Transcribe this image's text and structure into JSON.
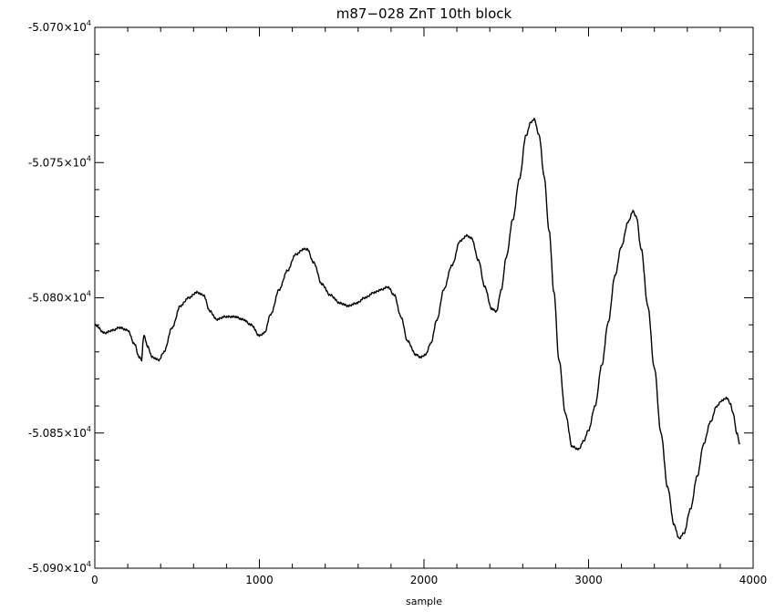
{
  "chart_data": {
    "type": "line",
    "title": "m87−028 ZnT 10th block",
    "xlabel": "sample",
    "ylabel": "",
    "xlim": [
      0,
      4000
    ],
    "ylim": [
      -50900,
      -50700
    ],
    "grid": false,
    "x_ticks": [
      0,
      1000,
      2000,
      3000,
      4000
    ],
    "x_tick_labels": [
      "0",
      "1000",
      "2000",
      "3000",
      "4000"
    ],
    "y_ticks": [
      -50900,
      -50850,
      -50800,
      -50750,
      -50700
    ],
    "y_tick_labels": [
      {
        "mantissa": "-5.090",
        "exp": "4"
      },
      {
        "mantissa": "-5.085",
        "exp": "4"
      },
      {
        "mantissa": "-5.080",
        "exp": "4"
      },
      {
        "mantissa": "-5.075",
        "exp": "4"
      },
      {
        "mantissa": "-5.070",
        "exp": "4"
      }
    ],
    "series": [
      {
        "line_color": "#000000",
        "x": [
          0,
          60,
          110,
          150,
          200,
          240,
          270,
          285,
          295,
          300,
          320,
          350,
          390,
          420,
          470,
          520,
          570,
          620,
          660,
          700,
          740,
          790,
          850,
          900,
          950,
          1000,
          1030,
          1070,
          1120,
          1170,
          1220,
          1270,
          1290,
          1330,
          1380,
          1430,
          1490,
          1540,
          1590,
          1640,
          1700,
          1740,
          1780,
          1820,
          1860,
          1900,
          1950,
          1980,
          2010,
          2040,
          2080,
          2120,
          2170,
          2220,
          2260,
          2290,
          2330,
          2370,
          2410,
          2440,
          2470,
          2500,
          2540,
          2580,
          2620,
          2650,
          2670,
          2700,
          2730,
          2760,
          2790,
          2820,
          2860,
          2900,
          2940,
          2970,
          3000,
          3040,
          3080,
          3120,
          3160,
          3200,
          3240,
          3270,
          3290,
          3320,
          3360,
          3400,
          3440,
          3480,
          3520,
          3550,
          3580,
          3620,
          3660,
          3700,
          3740,
          3780,
          3810,
          3840,
          3860,
          3880,
          3900,
          3920
        ],
        "values": [
          -50810,
          -50813,
          -50812,
          -50811,
          -50812,
          -50817,
          -50822,
          -50823,
          -50815,
          -50814,
          -50818,
          -50822,
          -50823,
          -50820,
          -50811,
          -50803,
          -50800,
          -50798,
          -50799,
          -50805,
          -50808,
          -50807,
          -50807,
          -50808,
          -50810,
          -50814,
          -50813,
          -50806,
          -50797,
          -50790,
          -50784,
          -50782,
          -50782,
          -50787,
          -50795,
          -50799,
          -50802,
          -50803,
          -50802,
          -50800,
          -50798,
          -50797,
          -50796,
          -50799,
          -50807,
          -50816,
          -50821,
          -50822,
          -50821,
          -50817,
          -50808,
          -50797,
          -50788,
          -50779,
          -50777,
          -50778,
          -50786,
          -50796,
          -50804,
          -50805,
          -50797,
          -50785,
          -50771,
          -50756,
          -50740,
          -50735,
          -50734,
          -50740,
          -50755,
          -50775,
          -50798,
          -50823,
          -50843,
          -50855,
          -50856,
          -50853,
          -50849,
          -50840,
          -50825,
          -50809,
          -50792,
          -50781,
          -50772,
          -50768,
          -50770,
          -50782,
          -50803,
          -50826,
          -50850,
          -50870,
          -50884,
          -50889,
          -50887,
          -50878,
          -50866,
          -50854,
          -50846,
          -50840,
          -50838,
          -50837,
          -50839,
          -50843,
          -50850,
          -50854
        ]
      }
    ]
  }
}
